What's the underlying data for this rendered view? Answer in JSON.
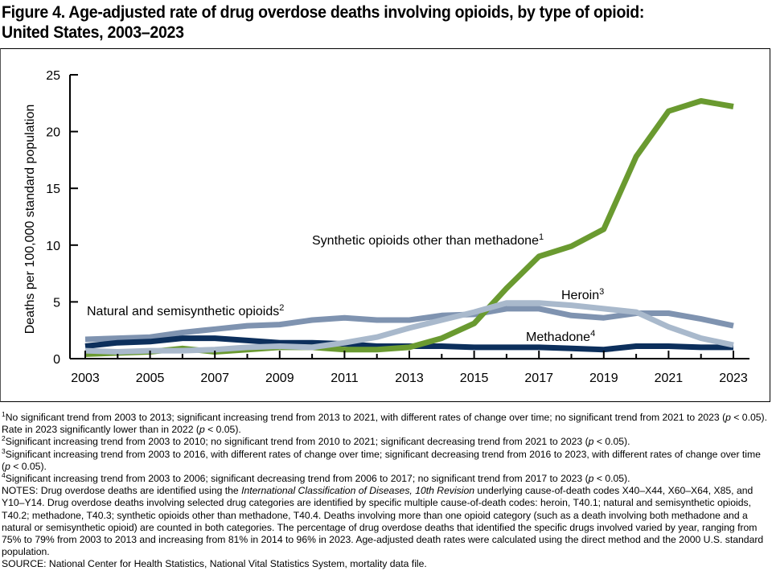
{
  "figure": {
    "title_line1": "Figure 4. Age-adjusted rate of drug overdose deaths involving opioids, by type of opioid:",
    "title_line2": "United States, 2003–2023"
  },
  "chart_data": {
    "type": "line",
    "title": "Age-adjusted rate of drug overdose deaths involving opioids, by type of opioid: United States, 2003–2023",
    "xlabel": "",
    "ylabel": "Deaths per 100,000 standard population",
    "x": [
      2003,
      2004,
      2005,
      2006,
      2007,
      2008,
      2009,
      2010,
      2011,
      2012,
      2013,
      2014,
      2015,
      2016,
      2017,
      2018,
      2019,
      2020,
      2021,
      2022,
      2023
    ],
    "xticks": [
      "2003",
      "2005",
      "2007",
      "2009",
      "2011",
      "2013",
      "2015",
      "2017",
      "2019",
      "2021",
      "2023"
    ],
    "yticks": [
      "0",
      "5",
      "10",
      "15",
      "20",
      "25"
    ],
    "ylim": [
      0,
      25
    ],
    "xlim": [
      2003,
      2023
    ],
    "grid": false,
    "legend": "inline labels",
    "series": [
      {
        "name": "Natural and semisynthetic opioids",
        "footnote": "2",
        "color": "#7f93b0",
        "values": [
          1.7,
          1.8,
          1.9,
          2.3,
          2.6,
          2.9,
          3.0,
          3.4,
          3.6,
          3.4,
          3.4,
          3.8,
          3.9,
          4.4,
          4.4,
          3.8,
          3.6,
          4.0,
          4.0,
          3.5,
          2.9
        ]
      },
      {
        "name": "Methadone",
        "footnote": "4",
        "color": "#0c2f5c",
        "values": [
          1.1,
          1.4,
          1.5,
          1.8,
          1.8,
          1.6,
          1.4,
          1.4,
          1.3,
          1.1,
          1.1,
          1.1,
          1.0,
          1.0,
          1.0,
          0.9,
          0.8,
          1.1,
          1.1,
          1.0,
          1.0
        ]
      },
      {
        "name": "Synthetic opioids other than methadone",
        "footnote": "1",
        "color": "#6a9a30",
        "values": [
          0.4,
          0.5,
          0.6,
          0.9,
          0.6,
          0.8,
          1.0,
          1.0,
          0.8,
          0.8,
          1.0,
          1.8,
          3.1,
          6.2,
          9.0,
          9.9,
          11.4,
          17.8,
          21.8,
          22.7,
          22.2
        ]
      },
      {
        "name": "Heroin",
        "footnote": "3",
        "color": "#a9b9cc",
        "values": [
          0.7,
          0.6,
          0.7,
          0.7,
          0.8,
          1.0,
          1.1,
          1.0,
          1.4,
          1.9,
          2.7,
          3.4,
          4.1,
          4.9,
          4.9,
          4.7,
          4.4,
          4.1,
          2.8,
          1.8,
          1.2
        ]
      }
    ]
  },
  "footnotes": [
    {
      "mark": "1",
      "parts": [
        {
          "t": "No significant trend from 2003 to 2013; significant increasing trend from 2013 to 2021, with different rates of change over time; no significant trend from 2021 to 2023 ("
        },
        {
          "t": "p",
          "i": true
        },
        {
          "t": " < 0.05). Rate in 2023 significantly lower than in 2022 ("
        },
        {
          "t": "p",
          "i": true
        },
        {
          "t": " < 0.05)."
        }
      ]
    },
    {
      "mark": "2",
      "parts": [
        {
          "t": "Significant increasing trend from 2003 to 2010; no significant trend from 2010 to 2021; significant decreasing trend from 2021 to 2023 ("
        },
        {
          "t": "p",
          "i": true
        },
        {
          "t": " < 0.05)."
        }
      ]
    },
    {
      "mark": "3",
      "parts": [
        {
          "t": "Significant increasing trend from 2003 to 2016, with different rates of change over time; significant decreasing trend from 2016 to 2023, with different rates of change over time ("
        },
        {
          "t": "p",
          "i": true
        },
        {
          "t": " < 0.05)."
        }
      ]
    },
    {
      "mark": "4",
      "parts": [
        {
          "t": "Significant increasing trend from 2003 to 2006; significant decreasing trend from 2006 to 2017; no significant trend from 2017 to 2023 ("
        },
        {
          "t": "p",
          "i": true
        },
        {
          "t": " < 0.05)."
        }
      ]
    }
  ],
  "notes": {
    "label": "NOTES: ",
    "parts": [
      {
        "t": "Drug overdose deaths are identified using the "
      },
      {
        "t": "International Classification of Diseases, 10th Revision",
        "i": true
      },
      {
        "t": " underlying cause-of-death codes X40–X44, X60–X64, X85, and Y10–Y14. Drug overdose deaths involving selected drug categories are identified by specific multiple cause-of-death codes: heroin, T40.1; natural and semisynthetic opioids, T40.2; methadone, T40.3; synthetic opioids other than methadone, T40.4. Deaths involving more than one opioid category (such as a death involving both methadone and a natural or semisynthetic opioid) are counted in both categories. The percentage of drug overdose deaths that identified the specific drugs involved varied by year, ranging from 75% to 79% from 2003 to 2013 and increasing from 81% in 2014 to 96% in 2023. Age-adjusted death rates were calculated using the direct method and the 2000 U.S. standard population."
      }
    ]
  },
  "source": "SOURCE: National Center for Health Statistics, National Vital Statistics System, mortality data file."
}
